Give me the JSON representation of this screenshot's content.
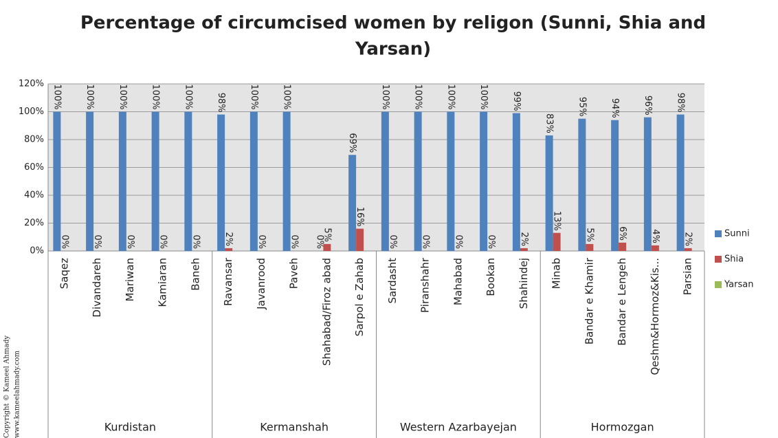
{
  "chart_data": {
    "type": "bar",
    "title": [
      "Percentage of circumcised women by religon (Sunni, Shia and",
      "Yarsan)"
    ],
    "categories": [
      "Saqez",
      "Divandareh",
      "Mariwan",
      "Kamiaran",
      "Baneh",
      "Ravansar",
      "Javanrood",
      "Paveh",
      "Shahabad/Firoz abad",
      "Sarpol e Zahab",
      "Sardasht",
      "Piranshahr",
      "Mahabad",
      "Bookan",
      "Shahindej",
      "Minab",
      "Bandar e Khamir",
      "Bandar e Lengeh",
      "Qeshm&Hormoz&Kis...",
      "Parsian"
    ],
    "groups": [
      {
        "name": "Kurdistan",
        "size": 5
      },
      {
        "name": "Kermanshah",
        "size": 5
      },
      {
        "name": "Western Azarbayejan",
        "size": 5
      },
      {
        "name": "Hormozgan",
        "size": 5
      }
    ],
    "series": [
      {
        "name": "Sunni",
        "color": "#4f81bd",
        "values": [
          100,
          100,
          100,
          100,
          100,
          98,
          100,
          100,
          0,
          69,
          100,
          100,
          100,
          100,
          99,
          83,
          95,
          94,
          96,
          98
        ],
        "value_labels": [
          "100%",
          "100%",
          "100%",
          "100%",
          "100%",
          "98%",
          "100%",
          "100%",
          "0%",
          "69%",
          "100%",
          "100%",
          "100%",
          "100%",
          "99%",
          "83%",
          "95%",
          "94%",
          "96%",
          "98%"
        ]
      },
      {
        "name": "Shia",
        "color": "#c0504d",
        "values": [
          0,
          0,
          0,
          0,
          0,
          2,
          0,
          0,
          5,
          16,
          0,
          0,
          0,
          0,
          2,
          13,
          5,
          6,
          4,
          2
        ],
        "value_labels": [
          "0%",
          "0%",
          "0%",
          "0%",
          "0%",
          "2%",
          "0%",
          "0%",
          "5%",
          "16%",
          "0%",
          "0%",
          "0%",
          "0%",
          "2%",
          "13%",
          "5%",
          "6%",
          "4%",
          "2%"
        ]
      },
      {
        "name": "Yarsan",
        "color": "#9bbb59",
        "values": [
          0,
          0,
          0,
          0,
          0,
          0,
          0,
          0,
          0,
          0,
          0,
          0,
          0,
          0,
          0,
          0,
          0,
          0,
          0,
          0
        ]
      }
    ],
    "ylim": [
      0,
      120
    ],
    "yticks": [
      {
        "value": 0,
        "label": "0%"
      },
      {
        "value": 20,
        "label": "20%"
      },
      {
        "value": 40,
        "label": "40%"
      },
      {
        "value": 60,
        "label": "60%"
      },
      {
        "value": 80,
        "label": "80%"
      },
      {
        "value": 100,
        "label": "100%"
      },
      {
        "value": 120,
        "label": "120%"
      }
    ],
    "grid": true,
    "legend": "right",
    "copyright": [
      "Copyright © Kameel Ahmady",
      "www.kameelahmady.com"
    ]
  }
}
